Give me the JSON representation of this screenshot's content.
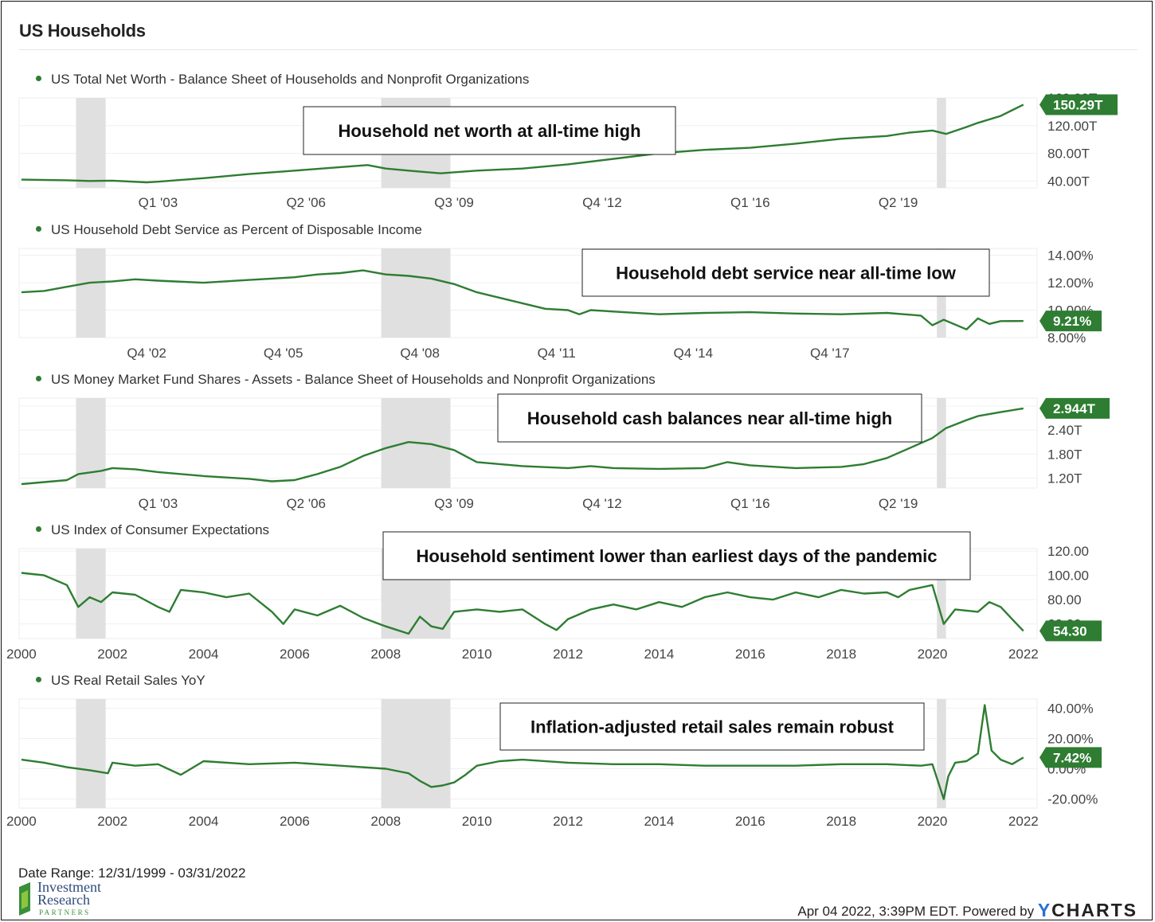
{
  "header": {
    "title": "US Households"
  },
  "footer": {
    "date_range": "Date Range: 12/31/1999 - 03/31/2022",
    "stamp": "Apr 04 2022, 3:39PM EDT. Powered by ",
    "brand_y": "Y",
    "brand_rest": "CHARTS",
    "logo_line1": "Investment",
    "logo_line2": "Research",
    "logo_line3": "PARTNERS"
  },
  "colors": {
    "line": "#2e7d32",
    "recession": "#e0e0e0",
    "label_bg": "#2e7d32",
    "grid": "#f0f0f0"
  },
  "chart_data": [
    {
      "type": "line",
      "title": "US Total Net Worth - Balance Sheet of Households and Nonprofit Organizations",
      "annotation": "Household net worth at all-time high",
      "y_ticks": [
        "160.00T",
        "120.00T",
        "80.00T",
        "40.00T"
      ],
      "y_tick_values": [
        160,
        120,
        80,
        40
      ],
      "ylim": [
        30,
        160
      ],
      "x_ticks": [
        "Q1 '03",
        "Q2 '06",
        "Q3 '09",
        "Q4 '12",
        "Q1 '16",
        "Q2 '19"
      ],
      "x_tick_values": [
        2003.0,
        2006.25,
        2009.5,
        2012.75,
        2016.0,
        2019.25
      ],
      "last_value_label": "150.29T",
      "x": [
        2000,
        2001,
        2001.5,
        2002,
        2002.75,
        2003,
        2004,
        2005,
        2006,
        2007,
        2007.6,
        2008,
        2008.5,
        2009.2,
        2010,
        2011,
        2012,
        2013,
        2014,
        2015,
        2016,
        2017,
        2018,
        2019,
        2019.5,
        2020,
        2020.3,
        2020.75,
        2021,
        2021.5,
        2022
      ],
      "y": [
        42,
        41,
        40,
        40.5,
        38,
        39,
        44,
        50,
        55,
        60,
        63,
        58,
        55,
        51,
        55,
        58,
        64,
        72,
        80,
        85,
        88,
        94,
        101,
        105,
        110,
        113,
        108,
        118,
        124,
        134,
        150.29
      ]
    },
    {
      "type": "line",
      "title": "US Household Debt Service as Percent of Disposable Income",
      "annotation": "Household debt service near all-time low",
      "y_ticks": [
        "14.00%",
        "12.00%",
        "10.00%",
        "8.00%"
      ],
      "y_tick_values": [
        14,
        12,
        10,
        8
      ],
      "ylim": [
        8,
        14.5
      ],
      "x_ticks": [
        "Q4 '02",
        "Q4 '05",
        "Q4 '08",
        "Q4 '11",
        "Q4 '14",
        "Q4 '17"
      ],
      "x_tick_values": [
        2002.75,
        2005.75,
        2008.75,
        2011.75,
        2014.75,
        2017.75
      ],
      "last_value_label": "9.21%",
      "x": [
        2000,
        2000.5,
        2001,
        2001.5,
        2002,
        2002.5,
        2003,
        2004,
        2005,
        2005.5,
        2006,
        2006.5,
        2007,
        2007.5,
        2008,
        2008.5,
        2009,
        2009.5,
        2010,
        2011,
        2011.5,
        2012,
        2012.25,
        2012.5,
        2013,
        2014,
        2015,
        2016,
        2017,
        2018,
        2019,
        2019.75,
        2020,
        2020.25,
        2020.75,
        2021,
        2021.25,
        2021.5,
        2022
      ],
      "y": [
        11.3,
        11.4,
        11.7,
        12.0,
        12.1,
        12.25,
        12.15,
        12.0,
        12.2,
        12.3,
        12.4,
        12.6,
        12.7,
        12.9,
        12.6,
        12.5,
        12.3,
        11.9,
        11.3,
        10.5,
        10.1,
        10.0,
        9.7,
        10.0,
        9.9,
        9.7,
        9.8,
        9.85,
        9.75,
        9.7,
        9.8,
        9.6,
        8.9,
        9.3,
        8.6,
        9.4,
        9.0,
        9.2,
        9.21
      ]
    },
    {
      "type": "line",
      "title": "US Money Market Fund Shares - Assets - Balance Sheet of Households and Nonprofit Organizations",
      "annotation": "Household cash balances near all-time high",
      "y_ticks": [
        "3.00T",
        "2.40T",
        "1.80T",
        "1.20T"
      ],
      "y_tick_values": [
        3.0,
        2.4,
        1.8,
        1.2
      ],
      "ylim": [
        0.95,
        3.2
      ],
      "x_ticks": [
        "Q1 '03",
        "Q2 '06",
        "Q3 '09",
        "Q4 '12",
        "Q1 '16",
        "Q2 '19"
      ],
      "x_tick_values": [
        2003.0,
        2006.25,
        2009.5,
        2012.75,
        2016.0,
        2019.25
      ],
      "last_value_label": "2.944T",
      "x": [
        2000,
        2001,
        2001.25,
        2001.75,
        2002,
        2002.5,
        2003,
        2004,
        2005,
        2005.5,
        2006,
        2006.5,
        2007,
        2007.5,
        2008,
        2008.5,
        2009,
        2009.5,
        2010,
        2011,
        2012,
        2012.5,
        2013,
        2014,
        2015,
        2015.5,
        2016,
        2017,
        2018,
        2018.5,
        2019,
        2019.5,
        2020,
        2020.3,
        2020.75,
        2021,
        2021.5,
        2022
      ],
      "y": [
        1.05,
        1.15,
        1.3,
        1.38,
        1.45,
        1.42,
        1.35,
        1.25,
        1.18,
        1.12,
        1.15,
        1.3,
        1.48,
        1.75,
        1.95,
        2.1,
        2.05,
        1.9,
        1.6,
        1.5,
        1.45,
        1.5,
        1.45,
        1.43,
        1.45,
        1.6,
        1.52,
        1.45,
        1.48,
        1.55,
        1.7,
        1.95,
        2.2,
        2.45,
        2.65,
        2.75,
        2.85,
        2.944
      ]
    },
    {
      "type": "line",
      "title": "US Index of Consumer Expectations",
      "annotation": "Household sentiment lower than earliest days of the pandemic",
      "y_ticks": [
        "120.00",
        "100.00",
        "80.00",
        "60.00"
      ],
      "y_tick_values": [
        120,
        100,
        80,
        60
      ],
      "ylim": [
        48,
        122
      ],
      "x_ticks": [
        "2000",
        "2002",
        "2004",
        "2006",
        "2008",
        "2010",
        "2012",
        "2014",
        "2016",
        "2018",
        "2020",
        "2022"
      ],
      "x_tick_values": [
        2000,
        2002,
        2004,
        2006,
        2008,
        2010,
        2012,
        2014,
        2016,
        2018,
        2020,
        2022
      ],
      "last_value_label": "54.30",
      "x": [
        2000,
        2000.5,
        2001,
        2001.25,
        2001.5,
        2001.75,
        2002,
        2002.5,
        2003,
        2003.25,
        2003.5,
        2004,
        2004.5,
        2005,
        2005.5,
        2005.75,
        2006,
        2006.5,
        2007,
        2007.5,
        2008,
        2008.25,
        2008.5,
        2008.75,
        2009,
        2009.25,
        2009.5,
        2010,
        2010.5,
        2011,
        2011.5,
        2011.75,
        2012,
        2012.5,
        2013,
        2013.5,
        2014,
        2014.5,
        2015,
        2015.5,
        2016,
        2016.5,
        2017,
        2017.5,
        2018,
        2018.5,
        2019,
        2019.25,
        2019.5,
        2020,
        2020.25,
        2020.5,
        2021,
        2021.25,
        2021.5,
        2021.75,
        2022
      ],
      "y": [
        102,
        100,
        92,
        74,
        82,
        78,
        86,
        84,
        74,
        70,
        88,
        86,
        82,
        85,
        70,
        60,
        72,
        67,
        75,
        65,
        58,
        55,
        52,
        66,
        58,
        56,
        70,
        72,
        70,
        72,
        60,
        55,
        64,
        72,
        76,
        72,
        78,
        74,
        82,
        86,
        82,
        80,
        86,
        82,
        88,
        85,
        86,
        82,
        88,
        92,
        60,
        72,
        70,
        78,
        74,
        64,
        54.3
      ]
    },
    {
      "type": "line",
      "title": "US Real Retail Sales YoY",
      "annotation": "Inflation-adjusted retail sales remain robust",
      "y_ticks": [
        "40.00%",
        "20.00%",
        "0.00%",
        "-20.00%"
      ],
      "y_tick_values": [
        40,
        20,
        0,
        -20
      ],
      "ylim": [
        -26,
        46
      ],
      "x_ticks": [
        "2000",
        "2002",
        "2004",
        "2006",
        "2008",
        "2010",
        "2012",
        "2014",
        "2016",
        "2018",
        "2020",
        "2022"
      ],
      "x_tick_values": [
        2000,
        2002,
        2004,
        2006,
        2008,
        2010,
        2012,
        2014,
        2016,
        2018,
        2020,
        2022
      ],
      "last_value_label": "7.42%",
      "x": [
        2000,
        2000.5,
        2001,
        2001.5,
        2001.9,
        2002,
        2002.5,
        2003,
        2003.5,
        2004,
        2005,
        2006,
        2007,
        2008,
        2008.5,
        2008.75,
        2009,
        2009.25,
        2009.5,
        2009.75,
        2010,
        2010.5,
        2011,
        2012,
        2013,
        2014,
        2015,
        2016,
        2017,
        2018,
        2019,
        2019.75,
        2020,
        2020.25,
        2020.35,
        2020.5,
        2020.75,
        2021,
        2021.15,
        2021.3,
        2021.5,
        2021.75,
        2022
      ],
      "y": [
        6,
        4,
        1,
        -1,
        -3,
        4,
        2,
        3,
        -4,
        5,
        3,
        4,
        2,
        0,
        -3,
        -8,
        -12,
        -11,
        -9,
        -4,
        2,
        5,
        6,
        4,
        3,
        3,
        2,
        2,
        2,
        3,
        3,
        2,
        3,
        -20,
        -5,
        4,
        5,
        10,
        42,
        12,
        6,
        3,
        7.42
      ]
    }
  ]
}
